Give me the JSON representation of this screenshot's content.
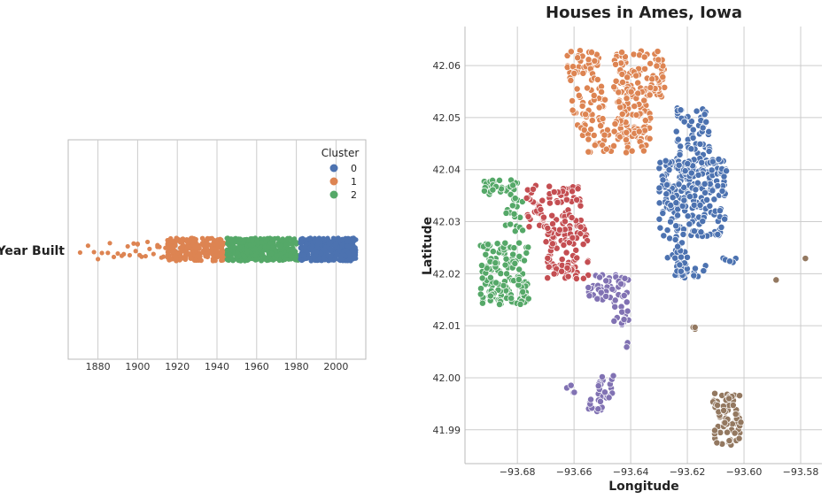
{
  "colors": {
    "cluster_0": "#4c72b0",
    "cluster_1": "#dd8452",
    "cluster_2": "#55a868",
    "cluster_3": "#c44e52",
    "cluster_4": "#8172b3",
    "cluster_5": "#937860",
    "grid": "#cccccc",
    "axis": "#bbbbbb"
  },
  "chart_data": [
    {
      "type": "strip",
      "title": "",
      "ylabel": "Year Built",
      "xlabel": "",
      "xlim": [
        1865,
        2015
      ],
      "xticks": [
        1880,
        1900,
        1920,
        1940,
        1960,
        1980,
        2000
      ],
      "grid": "vertical",
      "legend": {
        "title": "Cluster",
        "placement": "top-right",
        "entries": [
          {
            "label": "0",
            "color": "#4c72b0"
          },
          {
            "label": "1",
            "color": "#dd8452"
          },
          {
            "label": "2",
            "color": "#55a868"
          }
        ]
      },
      "series": [
        {
          "name": "1",
          "range": [
            1871,
            1944
          ]
        },
        {
          "name": "2",
          "range": [
            1945,
            1981
          ]
        },
        {
          "name": "0",
          "range": [
            1982,
            2010
          ]
        }
      ]
    },
    {
      "type": "scatter",
      "title": "Houses in Ames, Iowa",
      "xlabel": "Longitude",
      "ylabel": "Latitude",
      "xlim": [
        -93.6985,
        -93.5725
      ],
      "ylim": [
        41.9835,
        42.0675
      ],
      "xticks": [
        -93.68,
        -93.66,
        -93.64,
        -93.62,
        -93.6,
        -93.58
      ],
      "xtick_labels": [
        "−93.68",
        "−93.66",
        "−93.64",
        "−93.62",
        "−93.60",
        "−93.58"
      ],
      "yticks": [
        41.99,
        42.0,
        42.01,
        42.02,
        42.03,
        42.04,
        42.05,
        42.06
      ],
      "ytick_labels": [
        "41.99",
        "42.00",
        "42.01",
        "42.02",
        "42.03",
        "42.04",
        "42.05",
        "42.06"
      ],
      "grid": true,
      "clusters": [
        {
          "id": 0,
          "regions": [
            {
              "lon": [
                -93.624,
                -93.612
              ],
              "lat": [
                42.036,
                42.052
              ],
              "n": 90
            },
            {
              "lon": [
                -93.63,
                -93.606
              ],
              "lat": [
                42.027,
                42.042
              ],
              "n": 220
            },
            {
              "lon": [
                -93.627,
                -93.62
              ],
              "lat": [
                42.019,
                42.027
              ],
              "n": 35
            },
            {
              "lon": [
                -93.618,
                -93.613
              ],
              "lat": [
                42.019,
                42.022
              ],
              "n": 8
            },
            {
              "lon": [
                -93.608,
                -93.597
              ],
              "lat": [
                42.022,
                42.023
              ],
              "n": 5
            }
          ]
        },
        {
          "id": 1,
          "regions": [
            {
              "lon": [
                -93.6625,
                -93.651
              ],
              "lat": [
                42.057,
                42.063
              ],
              "n": 45
            },
            {
              "lon": [
                -93.646,
                -93.628
              ],
              "lat": [
                42.054,
                42.063
              ],
              "n": 95
            },
            {
              "lon": [
                -93.661,
                -93.649
              ],
              "lat": [
                42.048,
                42.056
              ],
              "n": 40
            },
            {
              "lon": [
                -93.645,
                -93.633
              ],
              "lat": [
                42.045,
                42.055
              ],
              "n": 75
            },
            {
              "lon": [
                -93.657,
                -93.645
              ],
              "lat": [
                42.043,
                42.05
              ],
              "n": 30
            },
            {
              "lon": [
                -93.642,
                -93.634
              ],
              "lat": [
                42.043,
                42.048
              ],
              "n": 20
            }
          ]
        },
        {
          "id": 2,
          "regions": [
            {
              "lon": [
                -93.692,
                -93.68
              ],
              "lat": [
                42.035,
                42.038
              ],
              "n": 30
            },
            {
              "lon": [
                -93.686,
                -93.678
              ],
              "lat": [
                42.028,
                42.035
              ],
              "n": 20
            },
            {
              "lon": [
                -93.693,
                -93.676
              ],
              "lat": [
                42.014,
                42.026
              ],
              "n": 140
            }
          ]
        },
        {
          "id": 3,
          "regions": [
            {
              "lon": [
                -93.677,
                -93.657
              ],
              "lat": [
                42.029,
                42.037
              ],
              "n": 80
            },
            {
              "lon": [
                -93.67,
                -93.655
              ],
              "lat": [
                42.019,
                42.029
              ],
              "n": 90
            }
          ]
        },
        {
          "id": 4,
          "regions": [
            {
              "lon": [
                -93.655,
                -93.64
              ],
              "lat": [
                42.015,
                42.02
              ],
              "n": 40
            },
            {
              "lon": [
                -93.646,
                -93.64
              ],
              "lat": [
                42.01,
                42.016
              ],
              "n": 18
            },
            {
              "lon": [
                -93.653,
                -93.646
              ],
              "lat": [
                41.996,
                42.001
              ],
              "n": 18
            },
            {
              "lon": [
                -93.655,
                -93.65
              ],
              "lat": [
                41.993,
                41.996
              ],
              "n": 15
            },
            {
              "lon": [
                -93.663,
                -93.658
              ],
              "lat": [
                41.997,
                41.999
              ],
              "n": 4
            },
            {
              "lon": [
                -93.642,
                -93.64
              ],
              "lat": [
                42.005,
                42.009
              ],
              "n": 2
            }
          ]
        },
        {
          "id": 5,
          "regions": [
            {
              "lon": [
                -93.611,
                -93.601
              ],
              "lat": [
                41.987,
                41.997
              ],
              "n": 70
            },
            {
              "lon": [
                -93.618,
                -93.617
              ],
              "lat": [
                42.009,
                42.01
              ],
              "n": 3
            },
            {
              "lon": [
                -93.589,
                -93.588
              ],
              "lat": [
                42.018,
                42.019
              ],
              "n": 1
            },
            {
              "lon": [
                -93.579,
                -93.578
              ],
              "lat": [
                42.0225,
                42.023
              ],
              "n": 1
            }
          ]
        }
      ]
    }
  ]
}
